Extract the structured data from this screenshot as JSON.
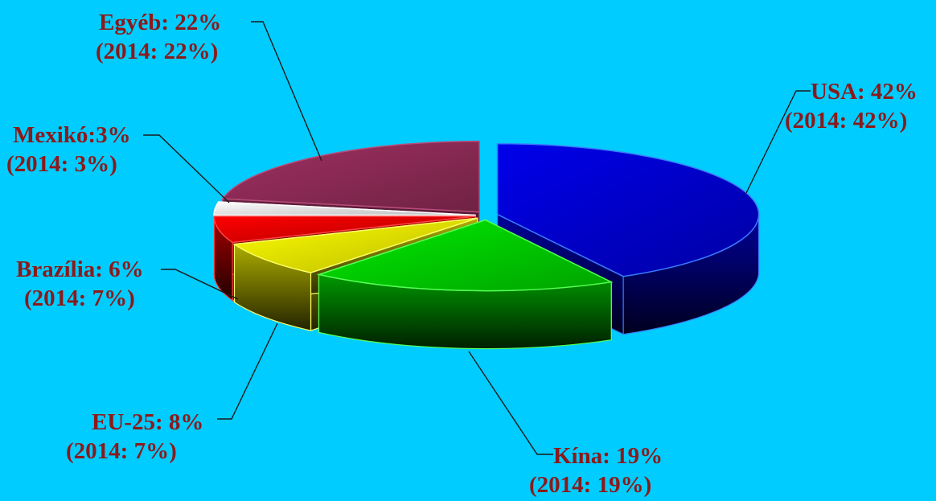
{
  "chart_data": {
    "type": "pie",
    "title": "",
    "slices": [
      {
        "label": "USA",
        "value": 42,
        "prev_value": 42,
        "label_text": "USA: 42%",
        "prev_text": "(2014: 42%)",
        "color": "#0000cc",
        "edge": "#3a7bff"
      },
      {
        "label": "Kína",
        "value": 19,
        "prev_value": 19,
        "label_text": "Kína: 19%",
        "prev_text": "(2014: 19%)",
        "color": "#00cc00",
        "edge": "#55ff55"
      },
      {
        "label": "EU-25",
        "value": 8,
        "prev_value": 7,
        "label_text": "EU-25: 8%",
        "prev_text": "(2014: 7%)",
        "color": "#e6e600",
        "edge": "#ffff66"
      },
      {
        "label": "Brazília",
        "value": 6,
        "prev_value": 7,
        "label_text": "Brazília: 6%",
        "prev_text": "(2014: 7%)",
        "color": "#dd0000",
        "edge": "#ff4444"
      },
      {
        "label": "Mexikó",
        "value": 3,
        "prev_value": 3,
        "label_text": "Mexikó:3%",
        "prev_text": "(2014: 3%)",
        "color": "#e8e8e8",
        "edge": "#ffffff"
      },
      {
        "label": "Egyéb",
        "value": 22,
        "prev_value": 22,
        "label_text": "Egyéb: 22%",
        "prev_text": "(2014: 22%)",
        "color": "#8b2a55",
        "edge": "#b84d7a"
      }
    ],
    "label_color": "#8b1a1a",
    "background": "#00ccff",
    "style": "3d-exploded"
  }
}
